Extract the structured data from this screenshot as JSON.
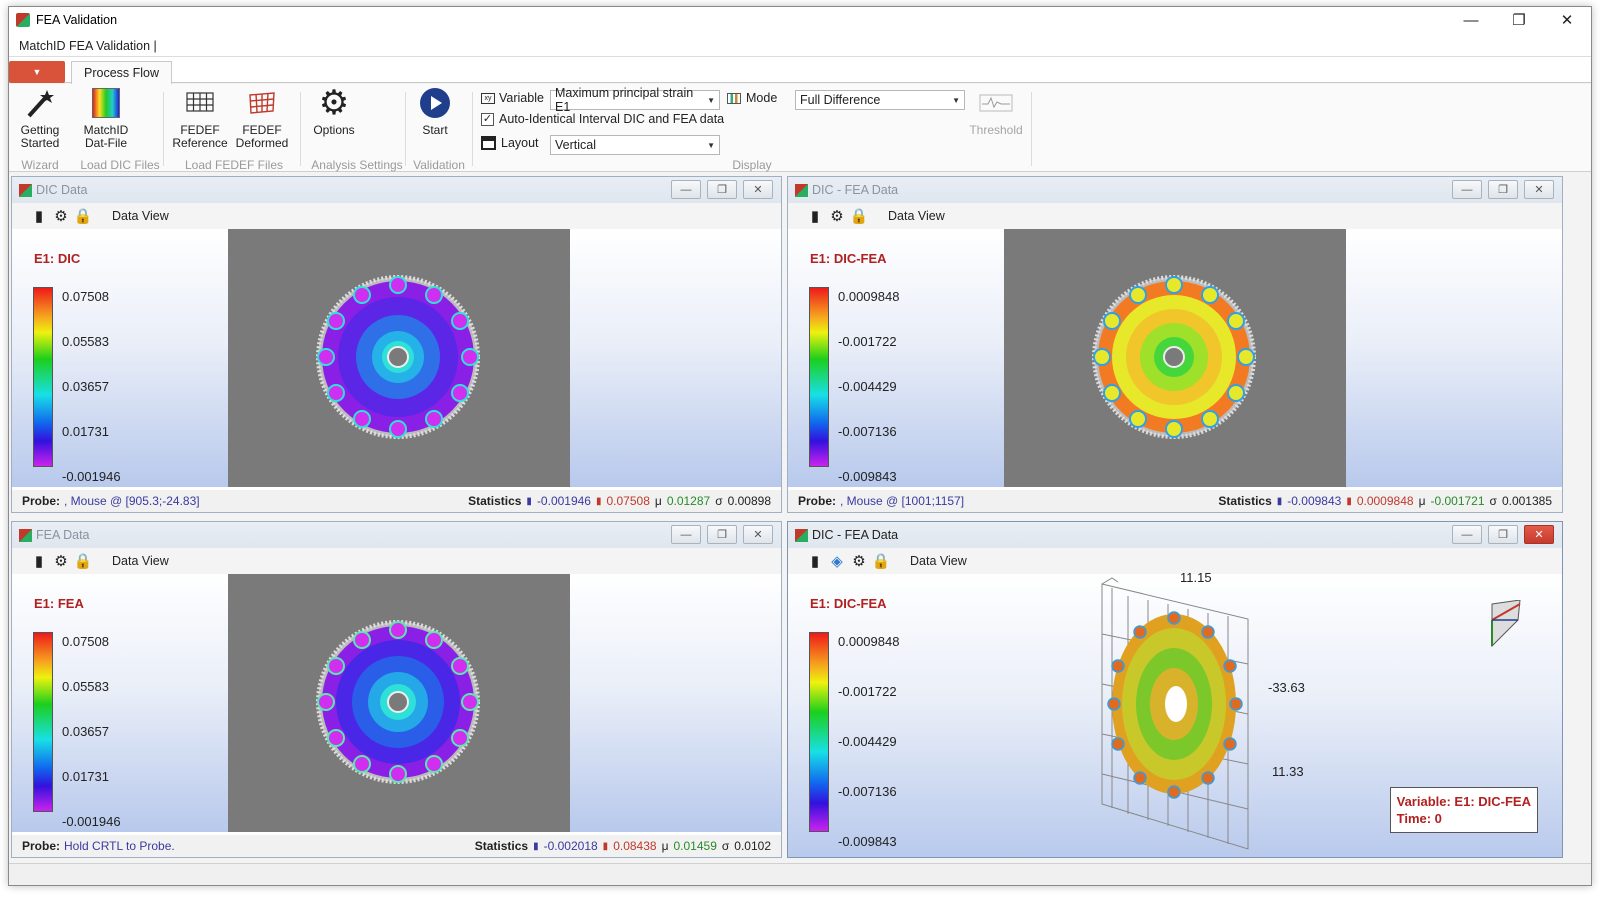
{
  "window": {
    "title": "FEA Validation",
    "minimize": "—",
    "restore": "❐",
    "close": "✕"
  },
  "subtitle": "MatchID FEA Validation   |",
  "tabs": {
    "file": "▼",
    "process_flow": "Process Flow"
  },
  "ribbon": {
    "getting_started": "Getting Started",
    "matchid_dat": "MatchID Dat-File",
    "fedef_ref": "FEDEF Reference",
    "fedef_def": "FEDEF Deformed",
    "options": "Options",
    "start": "Start",
    "threshold": "Threshold",
    "groups": {
      "wizard": "Wizard",
      "load_dic": "Load DIC Files",
      "load_fedef": "Load FEDEF Files",
      "analysis": "Analysis Settings",
      "validation": "Validation",
      "display": "Display"
    },
    "variable_label": "Variable",
    "variable_value": "Maximum principal strain E1",
    "mode_label": "Mode",
    "mode_value": "Full Difference",
    "auto_identical": "Auto-Identical Interval DIC and FEA data",
    "layout_label": "Layout",
    "layout_value": "Vertical"
  },
  "panels": [
    {
      "title": "DIC Data",
      "dataview": "Data View",
      "var": "E1: DIC",
      "ticks": [
        "0.07508",
        "0.05583",
        "0.03657",
        "0.01731",
        "-0.001946"
      ],
      "probe_label": "Probe:",
      "probe_value": ", Mouse @ [905.3;-24.83]",
      "stats_label": "Statistics",
      "min": "-0.001946",
      "max": "0.07508",
      "mean": "0.01287",
      "std": "0.00898"
    },
    {
      "title": "DIC - FEA Data",
      "dataview": "Data View",
      "var": "E1: DIC-FEA",
      "ticks": [
        "0.0009848",
        "-0.001722",
        "-0.004429",
        "-0.007136",
        "-0.009843"
      ],
      "probe_label": "Probe:",
      "probe_value": ", Mouse @ [1001;1157]",
      "stats_label": "Statistics",
      "min": "-0.009843",
      "max": "0.0009848",
      "mean": "-0.001721",
      "std": "0.001385"
    },
    {
      "title": "FEA Data",
      "dataview": "Data View",
      "var": "E1: FEA",
      "ticks": [
        "0.07508",
        "0.05583",
        "0.03657",
        "0.01731",
        "-0.001946"
      ],
      "probe_label": "Probe:",
      "probe_value": "Hold CRTL to Probe.",
      "stats_label": "Statistics",
      "min": "-0.002018",
      "max": "0.08438",
      "mean": "0.01459",
      "std": "0.0102"
    },
    {
      "title": "DIC - FEA Data",
      "dataview": "Data View",
      "var": "E1: DIC-FEA",
      "ticks": [
        "0.0009848",
        "-0.001722",
        "-0.004429",
        "-0.007136",
        "-0.009843"
      ],
      "axis": [
        "11.15",
        "-33.63",
        "11.33"
      ],
      "legend_var": "Variable: E1: DIC-FEA",
      "legend_time": "Time: 0"
    }
  ],
  "stat_symbols": {
    "mean": "μ",
    "std": "σ"
  }
}
